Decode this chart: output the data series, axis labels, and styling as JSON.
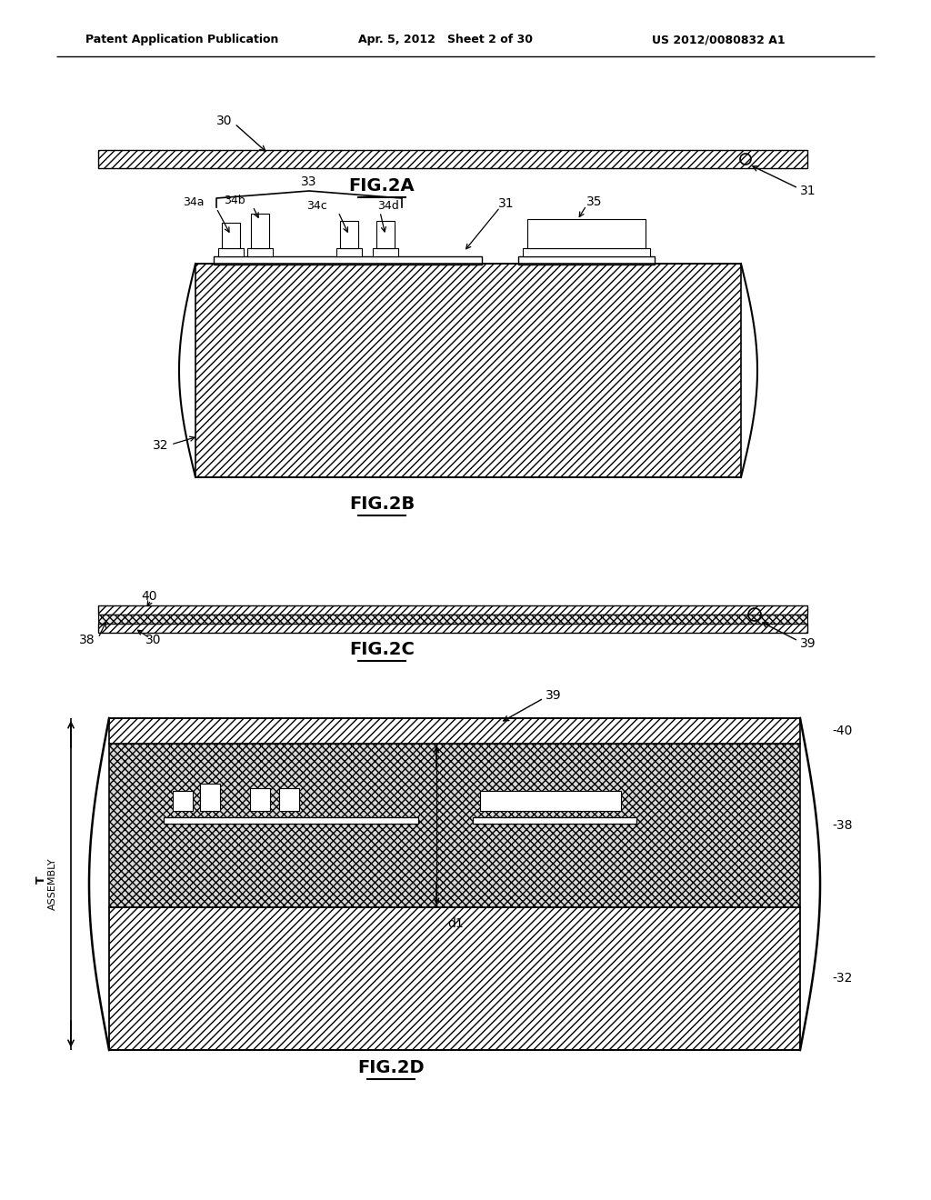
{
  "background_color": "#ffffff",
  "header_left": "Patent Application Publication",
  "header_mid": "Apr. 5, 2012   Sheet 2 of 30",
  "header_right": "US 2012/0080832 A1",
  "fig2a_label": "FIG.2A",
  "fig2b_label": "FIG.2B",
  "fig2c_label": "FIG.2C",
  "fig2d_label": "FIG.2D"
}
